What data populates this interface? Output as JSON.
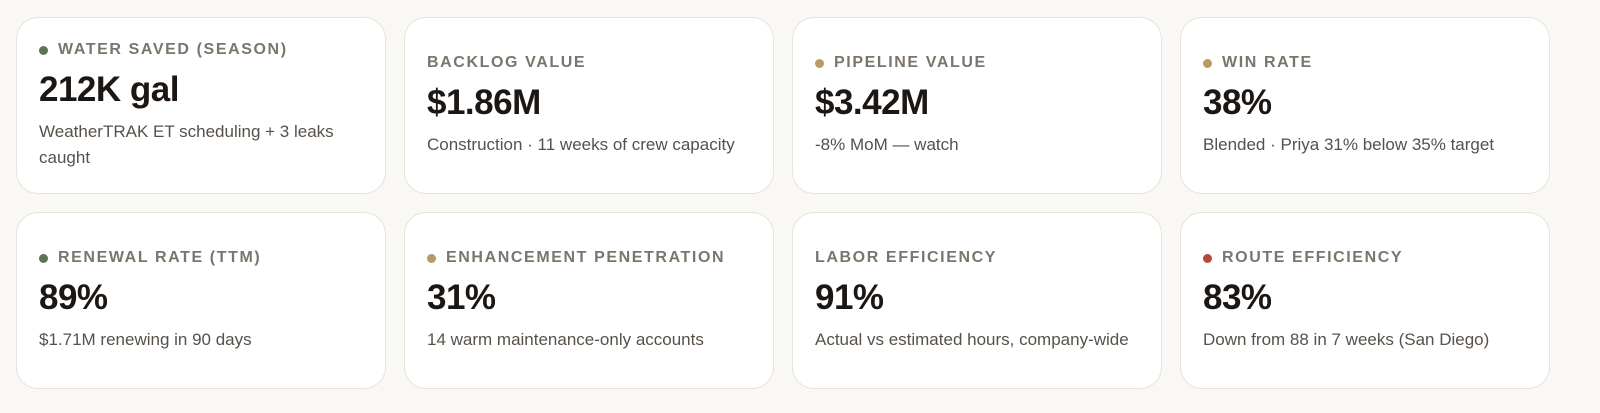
{
  "cards": [
    {
      "label": "WATER SAVED (SEASON)",
      "value": "212K gal",
      "sub": "WeatherTRAK ET scheduling + 3 leaks caught",
      "dot": "#5f7353"
    },
    {
      "label": "BACKLOG VALUE",
      "value": "$1.86M",
      "sub": "Construction · 11 weeks of crew capacity",
      "dot": null
    },
    {
      "label": "PIPELINE VALUE",
      "value": "$3.42M",
      "sub": "-8% MoM — watch",
      "dot": "#b89a62"
    },
    {
      "label": "WIN RATE",
      "value": "38%",
      "sub": "Blended · Priya 31% below 35% target",
      "dot": "#b89a62"
    },
    {
      "label": "RENEWAL RATE (TTM)",
      "value": "89%",
      "sub": "$1.71M renewing in 90 days",
      "dot": "#5f7353"
    },
    {
      "label": "ENHANCEMENT PENETRATION",
      "value": "31%",
      "sub": "14 warm maintenance-only accounts",
      "dot": "#b89a62"
    },
    {
      "label": "LABOR EFFICIENCY",
      "value": "91%",
      "sub": "Actual vs estimated hours, company-wide",
      "dot": null
    },
    {
      "label": "ROUTE EFFICIENCY",
      "value": "83%",
      "sub": "Down from 88 in 7 weeks (San Diego)",
      "dot": "#b8483a"
    }
  ]
}
